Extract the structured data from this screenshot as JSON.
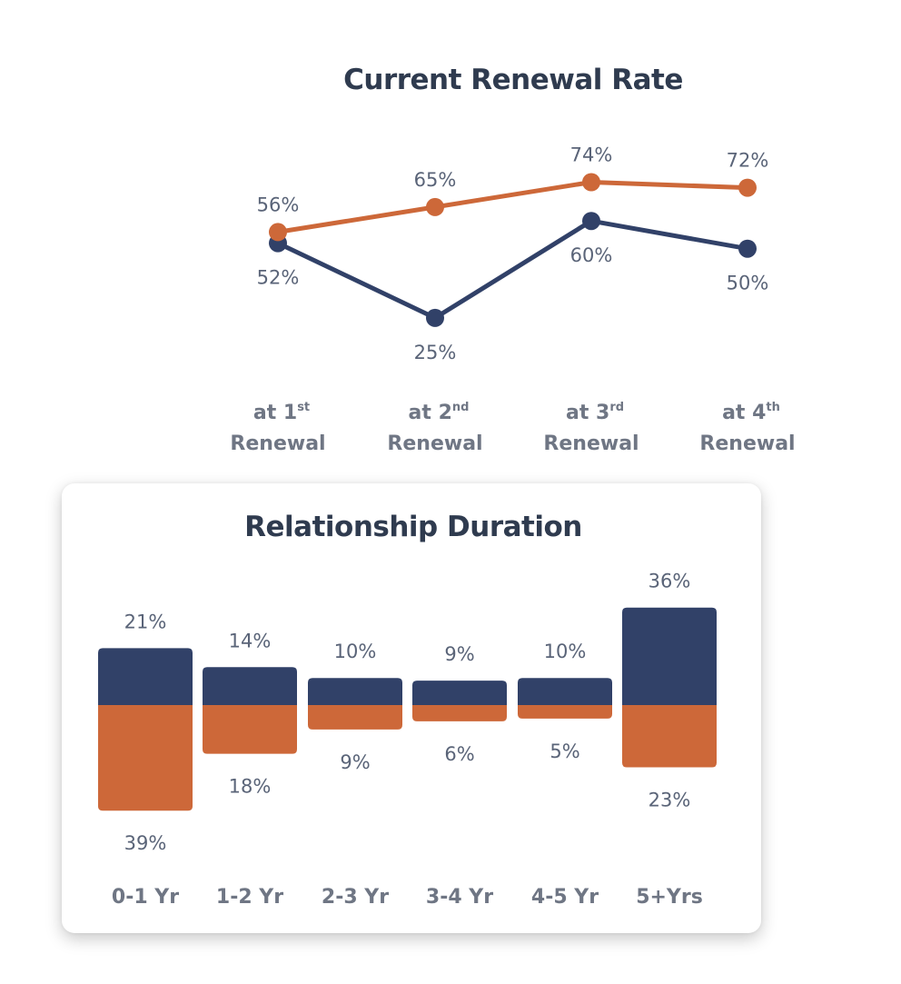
{
  "charts": {
    "renewal": {
      "title": "Current Renewal Rate"
    },
    "duration": {
      "title": "Relationship Duration"
    }
  },
  "colors": {
    "navy": "#314168",
    "orange": "#cd6839",
    "label": "#5a6478",
    "category": "#6f7684",
    "title": "#2f3b4f"
  },
  "chart_data": [
    {
      "type": "line",
      "title": "Current Renewal Rate",
      "categories": [
        {
          "prefix": "at ",
          "num": "1",
          "sup": "st",
          "line2": "Renewal"
        },
        {
          "prefix": "at ",
          "num": "2",
          "sup": "nd",
          "line2": "Renewal"
        },
        {
          "prefix": "at ",
          "num": "3",
          "sup": "rd",
          "line2": "Renewal"
        },
        {
          "prefix": "at ",
          "num": "4",
          "sup": "th",
          "line2": "Renewal"
        }
      ],
      "series": [
        {
          "name": "orange",
          "color": "#cd6839",
          "values": [
            56,
            65,
            74,
            72
          ],
          "labels": [
            "56%",
            "65%",
            "74%",
            "72%"
          ]
        },
        {
          "name": "navy",
          "color": "#314168",
          "values": [
            52,
            25,
            60,
            50
          ],
          "labels": [
            "52%",
            "25%",
            "60%",
            "50%"
          ]
        }
      ],
      "xlabel": "",
      "ylabel": ""
    },
    {
      "type": "bar",
      "title": "Relationship Duration",
      "categories": [
        "0-1 Yr",
        "1-2 Yr",
        "2-3 Yr",
        "3-4 Yr",
        "4-5 Yr",
        "5+Yrs"
      ],
      "series": [
        {
          "name": "navy",
          "color": "#314168",
          "direction": "up",
          "values": [
            21,
            14,
            10,
            9,
            10,
            36
          ],
          "labels": [
            "21%",
            "14%",
            "10%",
            "9%",
            "10%",
            "36%"
          ]
        },
        {
          "name": "orange",
          "color": "#cd6839",
          "direction": "down",
          "values": [
            39,
            18,
            9,
            6,
            5,
            23
          ],
          "labels": [
            "39%",
            "18%",
            "9%",
            "6%",
            "5%",
            "23%"
          ]
        }
      ],
      "xlabel": "",
      "ylabel": ""
    }
  ]
}
